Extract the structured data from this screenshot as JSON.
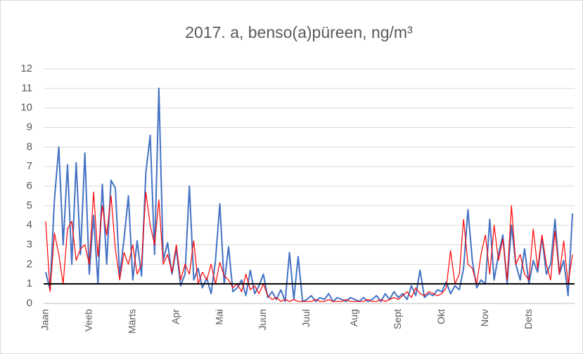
{
  "chart_data": {
    "type": "line",
    "title": "2017. a, benso(a)püreen,  ng/m³",
    "categories": [
      "Jaan",
      null,
      null,
      null,
      null,
      null,
      null,
      null,
      null,
      null,
      "Veeb",
      null,
      null,
      null,
      null,
      null,
      null,
      null,
      null,
      null,
      "Märts",
      null,
      null,
      null,
      null,
      null,
      null,
      null,
      null,
      null,
      "Apr",
      null,
      null,
      null,
      null,
      null,
      null,
      null,
      null,
      null,
      "Mai",
      null,
      null,
      null,
      null,
      null,
      null,
      null,
      null,
      null,
      "Juun",
      null,
      null,
      null,
      null,
      null,
      null,
      null,
      null,
      null,
      "Juul",
      null,
      null,
      null,
      null,
      null,
      null,
      null,
      null,
      null,
      null,
      "Aug",
      null,
      null,
      null,
      null,
      null,
      null,
      null,
      null,
      null,
      "Sept",
      null,
      null,
      null,
      null,
      null,
      null,
      null,
      null,
      null,
      "Okt",
      null,
      null,
      null,
      null,
      null,
      null,
      null,
      null,
      null,
      "Nov",
      null,
      null,
      null,
      null,
      null,
      null,
      null,
      null,
      null,
      "Dets",
      null,
      null,
      null,
      null,
      null,
      null,
      null,
      null,
      null,
      null
    ],
    "series": [
      {
        "color": "#4472c4",
        "values": [
          1.6,
          0.7,
          5.3,
          8.0,
          3.0,
          7.1,
          2.0,
          7.2,
          2.5,
          7.7,
          1.5,
          4.5,
          1.0,
          6.1,
          2.0,
          6.3,
          5.9,
          1.4,
          3.3,
          5.5,
          1.2,
          3.2,
          1.4,
          6.7,
          8.6,
          2.5,
          11.0,
          2.2,
          3.1,
          1.5,
          2.8,
          0.9,
          1.5,
          6.0,
          1.2,
          1.8,
          0.8,
          1.3,
          0.5,
          2.2,
          5.1,
          1.0,
          2.9,
          0.6,
          0.8,
          1.2,
          0.4,
          1.7,
          0.5,
          0.9,
          1.5,
          0.3,
          0.6,
          0.2,
          0.7,
          0.1,
          2.6,
          0.2,
          2.4,
          0.1,
          0.2,
          0.4,
          0.1,
          0.3,
          0.2,
          0.5,
          0.1,
          0.3,
          0.2,
          0.1,
          0.3,
          0.2,
          0.1,
          0.3,
          0.1,
          0.2,
          0.4,
          0.1,
          0.5,
          0.2,
          0.6,
          0.3,
          0.5,
          0.2,
          0.9,
          0.4,
          1.7,
          0.3,
          0.5,
          0.4,
          0.7,
          0.6,
          1.1,
          0.5,
          0.9,
          0.7,
          1.8,
          4.8,
          2.2,
          0.8,
          1.2,
          1.0,
          4.3,
          1.2,
          2.5,
          3.5,
          1.0,
          4.0,
          2.0,
          1.2,
          2.8,
          1.0,
          2.2,
          1.6,
          3.4,
          1.5,
          2.0,
          4.3,
          1.5,
          2.2,
          0.4,
          4.6
        ]
      },
      {
        "color": "#ff0000",
        "values": [
          4.2,
          0.6,
          3.6,
          2.5,
          1.0,
          3.8,
          4.2,
          2.2,
          2.8,
          3.0,
          2.0,
          5.7,
          2.4,
          5.0,
          3.5,
          5.5,
          2.8,
          1.2,
          2.6,
          2.0,
          3.0,
          1.5,
          2.0,
          5.7,
          4.0,
          3.0,
          5.3,
          2.0,
          2.5,
          1.6,
          3.0,
          1.2,
          2.0,
          1.5,
          3.2,
          1.0,
          1.6,
          1.2,
          2.0,
          1.0,
          2.1,
          1.4,
          1.2,
          0.8,
          1.0,
          0.6,
          1.5,
          0.7,
          0.9,
          0.5,
          1.0,
          0.4,
          0.2,
          0.3,
          0.1,
          0.2,
          0.1,
          0.2,
          0.1,
          0.1,
          0.1,
          0.1,
          0.2,
          0.1,
          0.1,
          0.2,
          0.1,
          0.1,
          0.1,
          0.2,
          0.1,
          0.1,
          0.1,
          0.1,
          0.2,
          0.1,
          0.1,
          0.2,
          0.1,
          0.2,
          0.3,
          0.2,
          0.4,
          0.6,
          0.3,
          0.8,
          0.5,
          0.4,
          0.6,
          0.5,
          0.4,
          0.5,
          0.8,
          2.7,
          1.0,
          1.5,
          4.3,
          2.0,
          1.8,
          1.0,
          2.5,
          3.5,
          1.5,
          4.0,
          2.2,
          3.3,
          1.2,
          5.0,
          2.0,
          2.5,
          1.5,
          1.2,
          3.8,
          1.8,
          3.5,
          2.0,
          1.2,
          3.7,
          1.5,
          3.2,
          1.0,
          2.5
        ]
      }
    ],
    "hline": 1,
    "hline_color": "#000000",
    "ylim": [
      0,
      12
    ],
    "yticks": [
      0,
      1,
      2,
      3,
      4,
      5,
      6,
      7,
      8,
      9,
      10,
      11,
      12
    ],
    "grid": true
  }
}
